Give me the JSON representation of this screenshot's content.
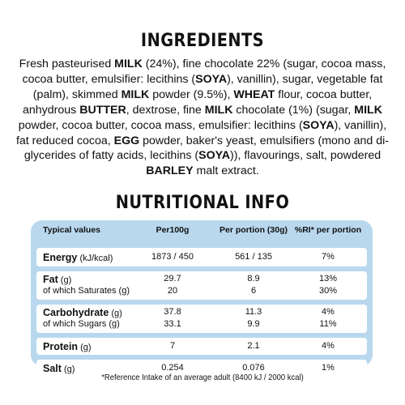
{
  "ingredients": {
    "title": "INGREDIENTS",
    "segments": [
      {
        "t": "Fresh pasteurised ",
        "b": false
      },
      {
        "t": "MILK",
        "b": true
      },
      {
        "t": " (24%), fine chocolate 22% (sugar, cocoa mass, cocoa butter, emulsifier: lecithins (",
        "b": false
      },
      {
        "t": "SOYA",
        "b": true
      },
      {
        "t": "), vanillin), sugar, vegetable fat (palm), skimmed ",
        "b": false
      },
      {
        "t": "MILK",
        "b": true
      },
      {
        "t": " powder (9.5%), ",
        "b": false
      },
      {
        "t": "WHEAT",
        "b": true
      },
      {
        "t": " flour, cocoa butter, anhydrous ",
        "b": false
      },
      {
        "t": "BUTTER",
        "b": true
      },
      {
        "t": ", dextrose, fine ",
        "b": false
      },
      {
        "t": "MILK",
        "b": true
      },
      {
        "t": " chocolate (1%) (sugar, ",
        "b": false
      },
      {
        "t": "MILK",
        "b": true
      },
      {
        "t": " powder, cocoa butter, cocoa mass, emulsifier: lecithins (",
        "b": false
      },
      {
        "t": "SOYA",
        "b": true
      },
      {
        "t": "), vanillin), fat reduced cocoa, ",
        "b": false
      },
      {
        "t": "EGG",
        "b": true
      },
      {
        "t": " powder, baker's yeast, emulsifiers (mono and di-glycerides of fatty acids, lecithins (",
        "b": false
      },
      {
        "t": "SOYA",
        "b": true
      },
      {
        "t": ")), flavourings, salt, powdered ",
        "b": false
      },
      {
        "t": "BARLEY",
        "b": true
      },
      {
        "t": " malt extract.",
        "b": false
      }
    ]
  },
  "nutrition": {
    "title": "NUTRITIONAL INFO",
    "headers": [
      "Typical values",
      "Per100g",
      "Per portion (30g)",
      "%RI* per portion"
    ],
    "rows": [
      {
        "lines": [
          {
            "name": "Energy",
            "unit": " (kJ/kcal)",
            "bold": true,
            "v": [
              "1873 / 450",
              "561 / 135",
              "7%"
            ]
          }
        ]
      },
      {
        "lines": [
          {
            "name": "Fat",
            "unit": " (g)",
            "bold": true,
            "v": [
              "29.7",
              "8.9",
              "13%"
            ]
          },
          {
            "name": "of which Saturates (g)",
            "unit": "",
            "bold": false,
            "v": [
              "20",
              "6",
              "30%"
            ]
          }
        ]
      },
      {
        "lines": [
          {
            "name": "Carbohydrate",
            "unit": " (g)",
            "bold": true,
            "v": [
              "37.8",
              "11.3",
              "4%"
            ]
          },
          {
            "name": "of which Sugars (g)",
            "unit": "",
            "bold": false,
            "v": [
              "33.1",
              "9.9",
              "11%"
            ]
          }
        ]
      },
      {
        "lines": [
          {
            "name": "Protein",
            "unit": " (g)",
            "bold": true,
            "v": [
              "7",
              "2.1",
              "4%"
            ]
          }
        ]
      },
      {
        "lines": [
          {
            "name": "Salt",
            "unit": " (g)",
            "bold": true,
            "v": [
              "0.254",
              "0.076",
              "1%"
            ]
          }
        ]
      }
    ],
    "footnote": "*Reference Intake of an average adult (8400 kJ / 2000 kcal)"
  },
  "colors": {
    "panel": "#b9d8ee",
    "row": "#ffffff"
  }
}
